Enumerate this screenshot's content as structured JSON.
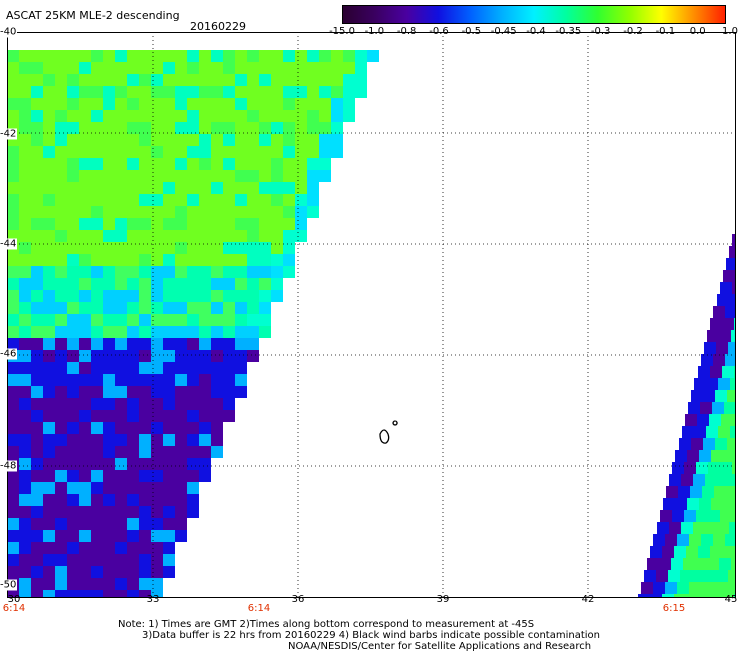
{
  "title": "ASCAT 25KM MLE-2 descending",
  "date": "20160229",
  "colorbar": {
    "labels": [
      "-15.0",
      "-1.0",
      "-0.8",
      "-0.6",
      "-0.5",
      "-0.45",
      "-0.4",
      "-0.35",
      "-0.3",
      "-0.2",
      "-0.1",
      "0.0",
      "1.0"
    ],
    "colors": [
      "#2a0030",
      "#3a0060",
      "#4a00a0",
      "#1010e0",
      "#0060ff",
      "#00b0ff",
      "#00f0ff",
      "#00ffa0",
      "#30ff30",
      "#90ff00",
      "#ffff00",
      "#ff9000",
      "#ff2000"
    ]
  },
  "axes": {
    "lon_ticks": [
      "30",
      "33",
      "36",
      "39",
      "42",
      "45"
    ],
    "lat_ticks": [
      "-40",
      "-42",
      "-44",
      "-46",
      "-48",
      "-50"
    ]
  },
  "times": [
    "6:14",
    "6:14",
    "6:15"
  ],
  "time_color": "#e03000",
  "notes": [
    "Note: 1) Times are GMT 2)Times along bottom correspond to measurement at -45S",
    "3)Data buffer is 22 hrs from 20160229 4) Black wind barbs indicate possible contamination",
    "NOAA/NESDIS/Center for Satellite Applications and Research"
  ]
}
